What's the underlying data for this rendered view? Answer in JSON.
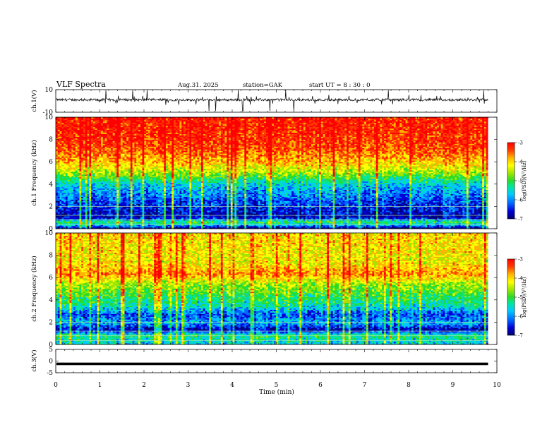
{
  "header": {
    "title": "VLF Spectra",
    "date": "Aug.31. 2025",
    "station": "station=GAK",
    "start": "start UT = 8 : 30 : 0"
  },
  "colors": {
    "palette": [
      "#00006e",
      "#0000d8",
      "#0064ff",
      "#00c8ff",
      "#00e6a0",
      "#28dc28",
      "#a0e600",
      "#ffff00",
      "#ffb400",
      "#ff3c00",
      "#ff0000"
    ],
    "frame": "#000000"
  },
  "chart_data": [
    {
      "type": "line",
      "name": "ch1-waveform",
      "ylabel": "ch.1(V)",
      "ylim": [
        -10,
        10
      ],
      "yticks": [
        "10",
        "-10"
      ],
      "baseline": 1,
      "description_values": "noisy baseline near +1 V with short spikes toward +10 V and -10 V"
    },
    {
      "type": "heatmap",
      "name": "ch1-spectrogram",
      "ylabel": "ch.1 Frequency (kHz)",
      "ylim": [
        0,
        10
      ],
      "yticks": [
        "0",
        "2",
        "4",
        "6",
        "8",
        "10"
      ],
      "profile_log_psd": [
        {
          "f": 0.2,
          "v": -6.2
        },
        {
          "f": 0.6,
          "v": -5.0
        },
        {
          "f": 1.0,
          "v": -6.6
        },
        {
          "f": 2.0,
          "v": -6.3
        },
        {
          "f": 3.0,
          "v": -6.0
        },
        {
          "f": 4.0,
          "v": -5.6
        },
        {
          "f": 5.0,
          "v": -4.6
        },
        {
          "f": 6.0,
          "v": -4.0
        },
        {
          "f": 7.0,
          "v": -3.6
        },
        {
          "f": 8.0,
          "v": -3.4
        },
        {
          "f": 10.0,
          "v": -3.3
        }
      ],
      "colorbar": {
        "label": "log(PSD)(V²/Hz)",
        "min": -7,
        "max": -3,
        "ticks": [
          "-3",
          "-4",
          "-5",
          "-6",
          "-7"
        ]
      }
    },
    {
      "type": "heatmap",
      "name": "ch2-spectrogram",
      "ylabel": "ch.2 Frequency (kHz)",
      "ylim": [
        0,
        10
      ],
      "yticks": [
        "0",
        "2",
        "4",
        "6",
        "8",
        "10"
      ],
      "profile_log_psd": [
        {
          "f": 0.2,
          "v": -5.6
        },
        {
          "f": 0.8,
          "v": -5.2
        },
        {
          "f": 1.3,
          "v": -6.6
        },
        {
          "f": 2.0,
          "v": -5.8
        },
        {
          "f": 2.7,
          "v": -6.2
        },
        {
          "f": 3.5,
          "v": -5.4
        },
        {
          "f": 4.5,
          "v": -5.0
        },
        {
          "f": 5.5,
          "v": -4.6
        },
        {
          "f": 6.3,
          "v": -3.8
        },
        {
          "f": 7.5,
          "v": -4.3
        },
        {
          "f": 10.0,
          "v": -4.1
        }
      ],
      "colorbar": {
        "label": "log(PSD)(V²/Hz)",
        "min": -7,
        "max": -3,
        "ticks": [
          "-3",
          "-4",
          "-5",
          "-6",
          "-7"
        ]
      }
    },
    {
      "type": "line",
      "name": "ch3-waveform",
      "ylabel": "ch.3(V)",
      "ylim": [
        -5,
        5
      ],
      "yticks": [
        "5",
        "0",
        "-5"
      ],
      "baseline": -1.2
    }
  ],
  "xaxis": {
    "label": "Time (min)",
    "range": [
      0,
      10
    ],
    "ticks": [
      "0",
      "1",
      "2",
      "3",
      "4",
      "5",
      "6",
      "7",
      "8",
      "9",
      "10"
    ],
    "data_end": 9.8
  }
}
